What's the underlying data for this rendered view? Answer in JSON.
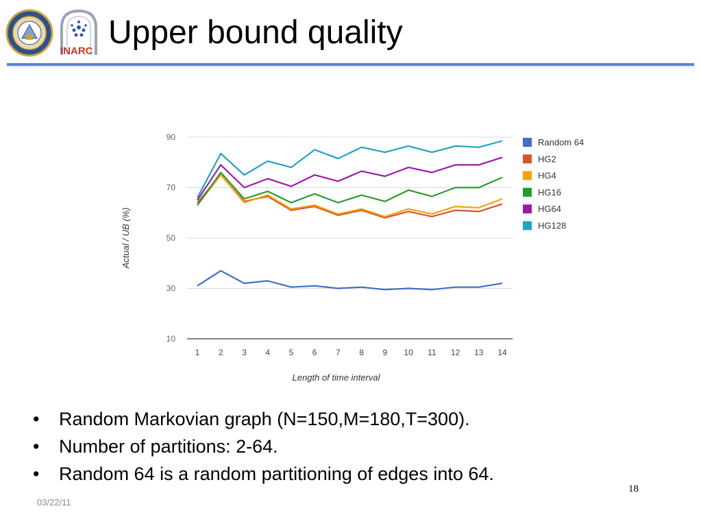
{
  "slide": {
    "title": "Upper bound quality",
    "bullets": [
      "Random Markovian graph (N=150,M=180,T=300).",
      "Number of partitions: 2-64.",
      "Random 64 is a random partitioning of edges into 64."
    ],
    "bullet_glyph": "•",
    "slide_number": "18",
    "date": "03/22/11",
    "logos": {
      "left": "university-seal",
      "right": "INARC",
      "right_text": "INARC"
    },
    "accent_color": "#5b7fd9"
  },
  "chart_data": {
    "type": "line",
    "title": "",
    "xlabel": "Length of time interval",
    "ylabel": "Actual / UB (%)",
    "x": [
      1,
      2,
      3,
      4,
      5,
      6,
      7,
      8,
      9,
      10,
      11,
      12,
      13,
      14
    ],
    "ylim": [
      10,
      90
    ],
    "yticks": [
      10,
      30,
      50,
      70,
      90
    ],
    "grid": true,
    "legend": "right",
    "series": [
      {
        "name": "Random 64",
        "color": "#3d6ec9",
        "values": [
          31,
          37,
          32,
          33,
          30.5,
          31,
          30,
          30.5,
          29.5,
          30,
          29.5,
          30.5,
          30.5,
          32
        ]
      },
      {
        "name": "HG2",
        "color": "#d9532b",
        "values": [
          64,
          75,
          64.5,
          66.5,
          61,
          62.5,
          59,
          61,
          58,
          60.5,
          58.5,
          61,
          60.5,
          63.5
        ]
      },
      {
        "name": "HG4",
        "color": "#f5a20c",
        "values": [
          63,
          75,
          64,
          67,
          61.5,
          63,
          59.5,
          61.5,
          58.5,
          61.5,
          59.5,
          62.5,
          62,
          65.5
        ]
      },
      {
        "name": "HG16",
        "color": "#2a9a2f",
        "values": [
          63,
          76,
          65.5,
          68.5,
          64,
          67.5,
          64,
          67,
          64.5,
          69,
          66.5,
          70,
          70,
          74
        ]
      },
      {
        "name": "HG64",
        "color": "#9c1aa8",
        "values": [
          65,
          79,
          70,
          73.5,
          70.5,
          75,
          72.5,
          76.5,
          74.5,
          78,
          76,
          79,
          79,
          82
        ]
      },
      {
        "name": "HG128",
        "color": "#21a1c4",
        "values": [
          66,
          83.5,
          75,
          80.5,
          78,
          85,
          81.5,
          86,
          84,
          86.5,
          84,
          86.5,
          86,
          88.5
        ]
      }
    ]
  }
}
